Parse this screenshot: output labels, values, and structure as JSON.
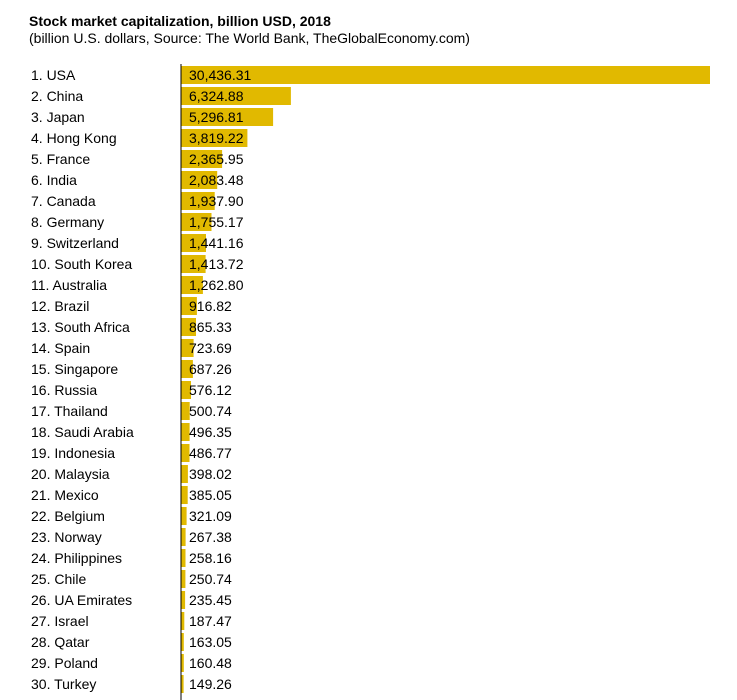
{
  "chart_data": {
    "type": "bar",
    "orientation": "horizontal",
    "title": "Stock market capitalization, billion USD, 2018",
    "subtitle": "(billion U.S. dollars, Source: The World Bank, TheGlobalEconomy.com)",
    "bar_color": "#e1b900",
    "categories": [
      "1. USA",
      "2. China",
      "3. Japan",
      "4. Hong Kong",
      "5. France",
      "6. India",
      "7. Canada",
      "8. Germany",
      "9. Switzerland",
      "10. South Korea",
      "11. Australia",
      "12. Brazil",
      "13. South Africa",
      "14. Spain",
      "15. Singapore",
      "16. Russia",
      "17. Thailand",
      "18. Saudi Arabia",
      "19. Indonesia",
      "20. Malaysia",
      "21. Mexico",
      "22. Belgium",
      "23. Norway",
      "24. Philippines",
      "25. Chile",
      "26. UA Emirates",
      "27. Israel",
      "28. Qatar",
      "29. Poland",
      "30. Turkey"
    ],
    "values": [
      30436.31,
      6324.88,
      5296.81,
      3819.22,
      2365.95,
      2083.48,
      1937.9,
      1755.17,
      1441.16,
      1413.72,
      1262.8,
      916.82,
      865.33,
      723.69,
      687.26,
      576.12,
      500.74,
      496.35,
      486.77,
      398.02,
      385.05,
      321.09,
      267.38,
      258.16,
      250.74,
      235.45,
      187.47,
      163.05,
      160.48,
      149.26
    ],
    "value_labels": [
      "30,436.31",
      "6,324.88",
      "5,296.81",
      "3,819.22",
      "2,365.95",
      "2,083.48",
      "1,937.90",
      "1,755.17",
      "1,441.16",
      "1,413.72",
      "1,262.80",
      "916.82",
      "865.33",
      "723.69",
      "687.26",
      "576.12",
      "500.74",
      "496.35",
      "486.77",
      "398.02",
      "385.05",
      "321.09",
      "267.38",
      "258.16",
      "250.74",
      "235.45",
      "187.47",
      "163.05",
      "160.48",
      "149.26"
    ],
    "xlim": [
      0,
      30436.31
    ],
    "grid": false,
    "legend": "none"
  }
}
